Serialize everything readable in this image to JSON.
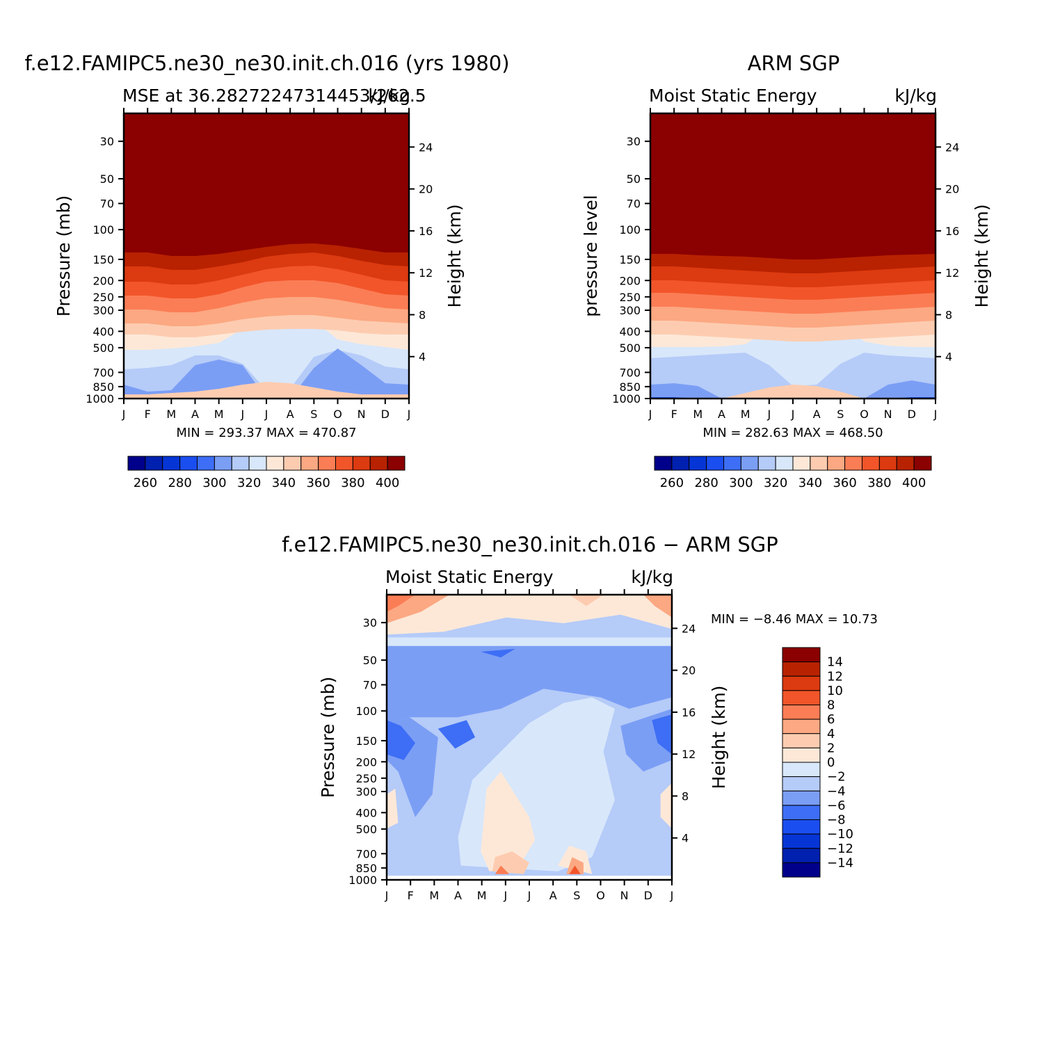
{
  "chart_data": [
    {
      "type": "heatmap",
      "title": "f.e12.FAMIPC5.ne30_ne30.init.ch.016 (yrs 1980)",
      "subtitle_left": "MSE at 36.28272247314453/262.5",
      "subtitle_right": "kJ/kg",
      "ylabel": "Pressure (mb)",
      "ylabel_right": "Height (km)",
      "x_ticks": [
        "J",
        "F",
        "M",
        "A",
        "M",
        "J",
        "J",
        "A",
        "S",
        "O",
        "N",
        "D",
        "J"
      ],
      "y_ticks": [
        "30",
        "50",
        "70",
        "100",
        "150",
        "200",
        "250",
        "300",
        "400",
        "500",
        "700",
        "850",
        "1000"
      ],
      "y2_ticks": [
        "24",
        "20",
        "16",
        "12",
        "8",
        "4"
      ],
      "stats": "MIN = 293.37 MAX = 470.87",
      "colorbar_labels": [
        "260",
        "280",
        "300",
        "320",
        "340",
        "360",
        "380",
        "400"
      ],
      "boundaries": {
        "d1": [
          210,
          210,
          205,
          205,
          208,
          213,
          218,
          222,
          223,
          220,
          215,
          210,
          210
        ],
        "d2": [
          190,
          190,
          185,
          185,
          190,
          196,
          204,
          208,
          210,
          205,
          198,
          192,
          190
        ],
        "d3": [
          168,
          168,
          164,
          164,
          170,
          178,
          186,
          190,
          191,
          186,
          178,
          170,
          168
        ],
        "d4": [
          148,
          148,
          144,
          144,
          150,
          160,
          168,
          170,
          170,
          166,
          158,
          150,
          148
        ],
        "d5": [
          128,
          128,
          124,
          124,
          130,
          138,
          144,
          146,
          146,
          142,
          136,
          130,
          128
        ],
        "d6": [
          108,
          108,
          104,
          104,
          108,
          114,
          118,
          120,
          120,
          116,
          112,
          110,
          108
        ],
        "d7": [
          92,
          92,
          88,
          88,
          92,
          96,
          99,
          100,
          100,
          98,
          94,
          92,
          92
        ],
        "d8": [
          70,
          70,
          72,
          75,
          80,
          100,
          160,
          148,
          112,
          85,
          78,
          74,
          70
        ],
        "b1": [
          42,
          44,
          48,
          62,
          62,
          50,
          12,
          14,
          60,
          70,
          62,
          46,
          42
        ],
        "b2": [
          20,
          10,
          12,
          48,
          56,
          48,
          0,
          0,
          44,
          72,
          48,
          22,
          20
        ],
        "b3": [
          0,
          4,
          6,
          0,
          0,
          0,
          0,
          0,
          0,
          0,
          0,
          0,
          0
        ],
        "w1": [
          6,
          6,
          8,
          10,
          14,
          20,
          24,
          22,
          16,
          10,
          6,
          6,
          6
        ]
      }
    },
    {
      "type": "heatmap",
      "title": "ARM SGP",
      "subtitle_left": "Moist Static Energy",
      "subtitle_right": "kJ/kg",
      "ylabel": "pressure level",
      "ylabel_right": "Height (km)",
      "x_ticks": [
        "J",
        "F",
        "M",
        "A",
        "M",
        "J",
        "J",
        "A",
        "S",
        "O",
        "N",
        "D",
        "J"
      ],
      "y_ticks": [
        "30",
        "50",
        "70",
        "100",
        "150",
        "200",
        "250",
        "300",
        "400",
        "500",
        "700",
        "850",
        "1000"
      ],
      "y2_ticks": [
        "24",
        "20",
        "16",
        "12",
        "8",
        "4"
      ],
      "stats": "MIN = 282.63 MAX = 468.50",
      "colorbar_labels": [
        "260",
        "280",
        "300",
        "320",
        "340",
        "360",
        "380",
        "400"
      ],
      "boundaries": {
        "d1": [
          208,
          208,
          206,
          205,
          204,
          202,
          200,
          200,
          202,
          204,
          206,
          207,
          208
        ],
        "d2": [
          190,
          190,
          188,
          186,
          184,
          182,
          180,
          180,
          182,
          184,
          186,
          188,
          190
        ],
        "d3": [
          170,
          170,
          168,
          166,
          164,
          162,
          160,
          160,
          162,
          164,
          166,
          168,
          170
        ],
        "d4": [
          152,
          152,
          150,
          148,
          146,
          144,
          142,
          142,
          144,
          146,
          148,
          150,
          152
        ],
        "d5": [
          132,
          132,
          130,
          128,
          126,
          124,
          122,
          122,
          124,
          126,
          128,
          130,
          132
        ],
        "d6": [
          112,
          112,
          110,
          108,
          106,
          104,
          102,
          102,
          104,
          106,
          108,
          110,
          112
        ],
        "d7": [
          92,
          92,
          90,
          88,
          86,
          84,
          82,
          82,
          84,
          86,
          88,
          90,
          92
        ],
        "d8": [
          74,
          74,
          74,
          75,
          78,
          100,
          150,
          146,
          110,
          82,
          76,
          74,
          74
        ],
        "b1": [
          58,
          60,
          62,
          64,
          66,
          48,
          18,
          20,
          50,
          66,
          62,
          60,
          58
        ],
        "b2": [
          20,
          22,
          18,
          0,
          0,
          0,
          0,
          0,
          0,
          0,
          20,
          26,
          20
        ],
        "b3": [
          2,
          2,
          0,
          0,
          0,
          0,
          0,
          0,
          0,
          0,
          0,
          2,
          2
        ],
        "w1": [
          0,
          0,
          0,
          0,
          8,
          16,
          20,
          18,
          10,
          0,
          0,
          0,
          0
        ]
      }
    },
    {
      "type": "heatmap",
      "title": "f.e12.FAMIPC5.ne30_ne30.init.ch.016 − ARM SGP",
      "subtitle_left": "Moist Static Energy",
      "subtitle_right": "kJ/kg",
      "ylabel": "Pressure (mb)",
      "ylabel_right": "Height (km)",
      "x_ticks": [
        "J",
        "F",
        "M",
        "A",
        "M",
        "J",
        "J",
        "A",
        "S",
        "O",
        "N",
        "D",
        "J"
      ],
      "y_ticks": [
        "30",
        "50",
        "70",
        "100",
        "150",
        "200",
        "250",
        "300",
        "400",
        "500",
        "700",
        "850",
        "1000"
      ],
      "y2_ticks": [
        "24",
        "20",
        "16",
        "12",
        "8",
        "4"
      ],
      "stats": "MIN =   −8.46 MAX =   10.73",
      "colorbar_labels": [
        "14",
        "12",
        "10",
        "8",
        "6",
        "4",
        "2",
        "0",
        "−2",
        "−4",
        "−6",
        "−8",
        "−10",
        "−12",
        "−14"
      ]
    }
  ],
  "palette": {
    "ramp": [
      "#00008B",
      "#0020B0",
      "#0635D6",
      "#1B4EF0",
      "#3D6EF5",
      "#7B9EF5",
      "#B5CBF8",
      "#D8E7FA",
      "#FDE8D8",
      "#FDCCB0",
      "#FCA882",
      "#FB7D55",
      "#F2552A",
      "#DC3A10",
      "#B82200",
      "#8B0000"
    ]
  }
}
